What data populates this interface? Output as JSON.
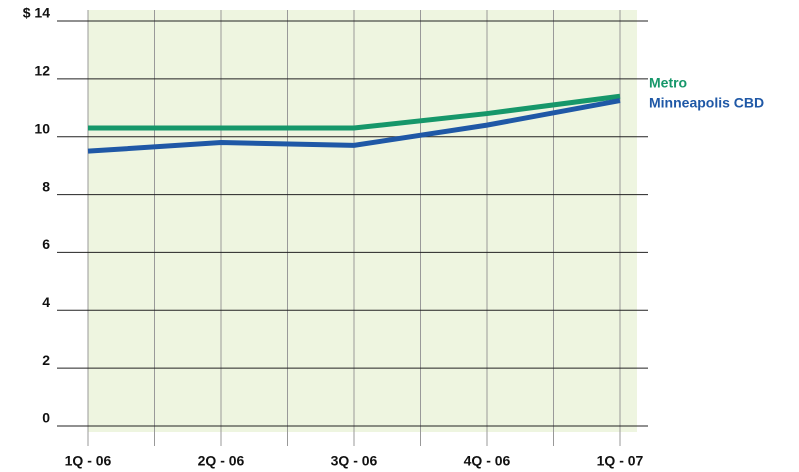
{
  "chart_data": {
    "type": "line",
    "categories": [
      "1Q - 06",
      "2Q - 06",
      "3Q - 06",
      "4Q - 06",
      "1Q - 07"
    ],
    "series": [
      {
        "name": "Metro",
        "color": "#16976a",
        "values": [
          10.3,
          10.3,
          10.3,
          10.8,
          11.4
        ]
      },
      {
        "name": "Minneapolis CBD",
        "color": "#1f58a6",
        "values": [
          9.5,
          9.8,
          9.7,
          10.4,
          11.25
        ]
      }
    ],
    "ylim": [
      0,
      14
    ],
    "yticks": [
      0,
      2,
      4,
      6,
      8,
      10,
      12,
      {
        "value": 14,
        "label": "$ 14"
      }
    ],
    "grid": true
  }
}
